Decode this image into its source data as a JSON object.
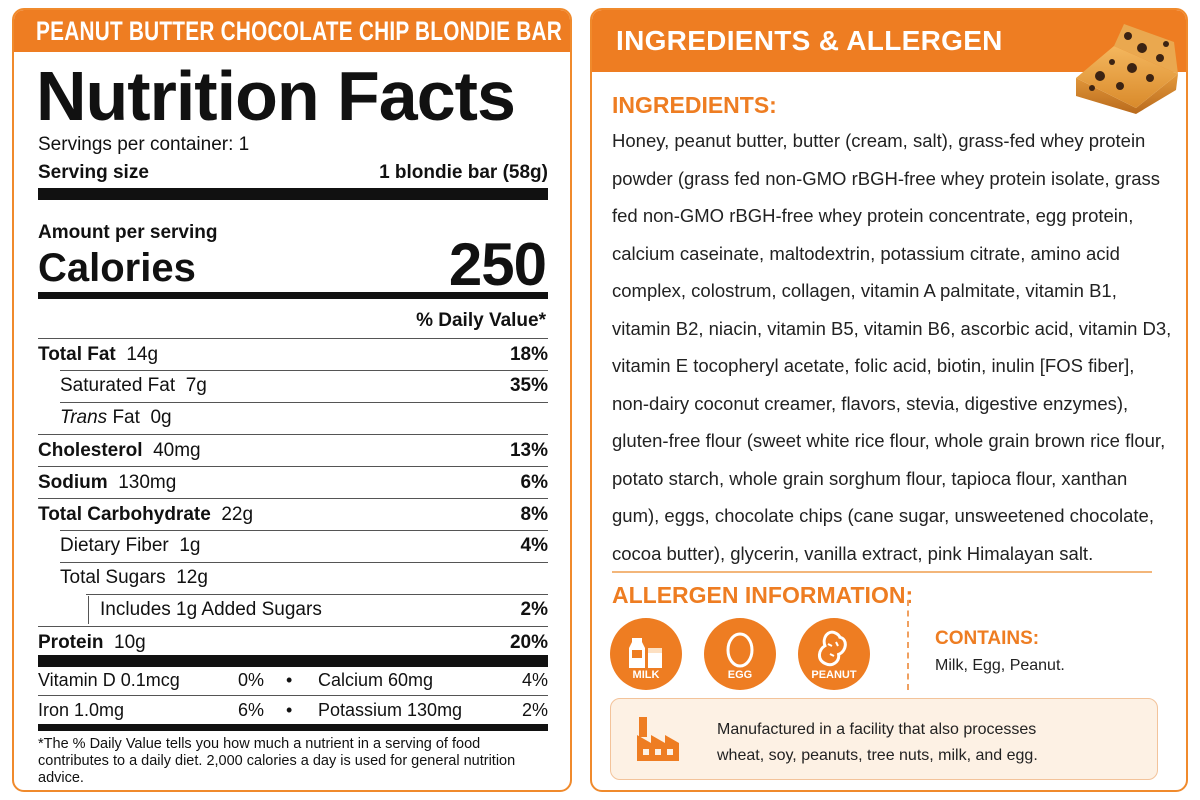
{
  "nutrition": {
    "product_name": "PEANUT BUTTER CHOCOLATE CHIP BLONDIE BAR",
    "title": "Nutrition Facts",
    "servings_per_container": "Servings per container: 1",
    "serving_size_label": "Serving size",
    "serving_size_value": "1 blondie bar (58g)",
    "amount_per_serving": "Amount per serving",
    "calories_label": "Calories",
    "calories_value": "250",
    "dv_header": "% Daily Value*",
    "rows": [
      {
        "name": "Total Fat",
        "amount": "14g",
        "dv": "18%"
      },
      {
        "name": "Saturated Fat",
        "amount": "7g",
        "dv": "35%"
      },
      {
        "name": "Trans",
        "name_suffix": "Fat",
        "amount": "0g",
        "dv": ""
      },
      {
        "name": "Cholesterol",
        "amount": "40mg",
        "dv": "13%"
      },
      {
        "name": "Sodium",
        "amount": "130mg",
        "dv": "6%"
      },
      {
        "name": "Total Carbohydrate",
        "amount": "22g",
        "dv": "8%"
      },
      {
        "name": "Dietary Fiber",
        "amount": "1g",
        "dv": "4%"
      },
      {
        "name": "Total Sugars",
        "amount": "12g",
        "dv": ""
      },
      {
        "name": "Includes 1g Added Sugars",
        "amount": "",
        "dv": "2%"
      },
      {
        "name": "Protein",
        "amount": "10g",
        "dv": "20%"
      }
    ],
    "vitamins": [
      {
        "name": "Vitamin D 0.1mcg",
        "dv": "0%",
        "bullet": "•",
        "name2": "Calcium 60mg",
        "dv2": "4%"
      },
      {
        "name": "Iron 1.0mg",
        "dv": "6%",
        "bullet": "•",
        "name2": "Potassium 130mg",
        "dv2": "2%"
      }
    ],
    "footnote": "*The % Daily Value tells you how much a nutrient in a serving of food contributes to a daily diet. 2,000 calories a day is used for general nutrition advice."
  },
  "info": {
    "header": "INGREDIENTS & ALLERGEN INFORMATION",
    "ingredients_title": "INGREDIENTS:",
    "ingredients_text": "Honey, peanut butter, butter (cream, salt), grass-fed whey protein powder (grass fed non-GMO rBGH-free whey protein isolate, grass fed non-GMO rBGH-free whey protein concentrate, egg protein, calcium caseinate, maltodextrin, potassium citrate, amino acid complex, colostrum, collagen, vitamin A palmitate, vitamin B1, vitamin B2, niacin, vitamin B5, vitamin B6, ascorbic acid, vitamin D3, vitamin E tocopheryl acetate, folic acid, biotin, inulin [FOS fiber], non-dairy coconut creamer, flavors, stevia, digestive enzymes), gluten-free flour (sweet white rice flour, whole grain brown rice flour, potato starch, whole grain sorghum flour, tapioca flour, xanthan gum), eggs, chocolate chips (cane sugar, unsweetened chocolate, cocoa butter), glycerin, vanilla extract, pink Himalayan salt.",
    "allergen_title": "ALLERGEN INFORMATION:",
    "allergens": [
      {
        "label": "MILK",
        "icon": "milk-icon"
      },
      {
        "label": "EGG",
        "icon": "egg-icon"
      },
      {
        "label": "PEANUT",
        "icon": "peanut-icon"
      }
    ],
    "contains_title": "CONTAINS:",
    "contains_text": "Milk, Egg, Peanut.",
    "facility_text_line1": "Manufactured in a facility that also processes",
    "facility_text_line2": "wheat, soy, peanuts, tree nuts, milk, and egg.",
    "accent_color": "#ee7d22"
  }
}
